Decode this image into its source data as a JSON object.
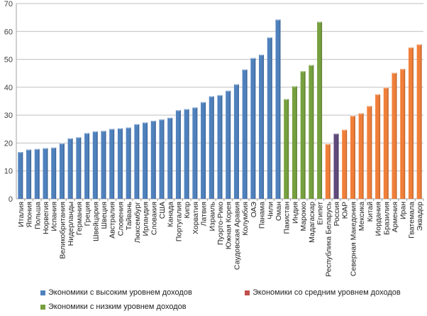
{
  "chart_data": {
    "type": "bar",
    "title": "",
    "xlabel": "",
    "ylabel": "",
    "ylim": [
      0,
      70
    ],
    "yticks": [
      "0",
      "10",
      "20",
      "30",
      "40",
      "50",
      "60",
      "70"
    ],
    "grid": true,
    "legend_placement": "bottom",
    "series": [
      {
        "name": "Экономики с высоким уровнем доходов",
        "color": "#4f81bd"
      },
      {
        "name": "Экономики со средним уровнем доходов",
        "color": "#c0504d"
      },
      {
        "name": "Экономики с низким уровнем доходов",
        "color": "#77a03f"
      }
    ],
    "group_colors": {
      "high": "#4f81bd",
      "low": "#77a03f",
      "middle": "#f07f3a",
      "russia": "#604a7b"
    },
    "categories": [
      "Италия",
      "Япония",
      "Польша",
      "Норвегия",
      "Испания",
      "Великобритания",
      "Нидерланды",
      "Германия",
      "Греция",
      "Швейцария",
      "Швеция",
      "Австралия",
      "Словения",
      "Тайвань",
      "Люксембург",
      "Ирландия",
      "Словакия",
      "США",
      "Канада",
      "Португалия",
      "Кипр",
      "Хорватия",
      "Латвия",
      "Израиль",
      "Пуэрто-Рико",
      "Южная Корея",
      "Саудовская Аравия",
      "Колумбия",
      "ОАЭ",
      "Панама",
      "Чили",
      "Оман",
      "Пакистан",
      "Индия",
      "Марокко",
      "Мадагаскар",
      "Египет",
      "Республика Беларусь",
      "Россия",
      "ЮАР",
      "Северная Македония",
      "Мексика",
      "Китай",
      "Иордания",
      "Бразилия",
      "Армения",
      "Иран",
      "Гватемала",
      "Эквадор"
    ],
    "values": [
      16.8,
      17.7,
      17.9,
      18.2,
      18.4,
      19.9,
      21.7,
      22.1,
      23.6,
      24.2,
      24.4,
      25.1,
      25.3,
      25.6,
      26.8,
      27.4,
      28.0,
      28.5,
      29.1,
      31.8,
      32.2,
      32.8,
      34.7,
      36.8,
      37.2,
      38.8,
      41.1,
      46.4,
      50.5,
      51.7,
      57.9,
      64.3,
      35.8,
      40.4,
      45.8,
      48.0,
      63.5,
      19.7,
      23.4,
      24.8,
      29.8,
      30.7,
      33.3,
      37.5,
      39.9,
      45.2,
      46.6,
      54.3,
      55.4
    ],
    "groups": [
      "high",
      "high",
      "high",
      "high",
      "high",
      "high",
      "high",
      "high",
      "high",
      "high",
      "high",
      "high",
      "high",
      "high",
      "high",
      "high",
      "high",
      "high",
      "high",
      "high",
      "high",
      "high",
      "high",
      "high",
      "high",
      "high",
      "high",
      "high",
      "high",
      "high",
      "high",
      "high",
      "low",
      "low",
      "low",
      "low",
      "low",
      "middle",
      "russia",
      "middle",
      "middle",
      "middle",
      "middle",
      "middle",
      "middle",
      "middle",
      "middle",
      "middle",
      "middle"
    ]
  }
}
